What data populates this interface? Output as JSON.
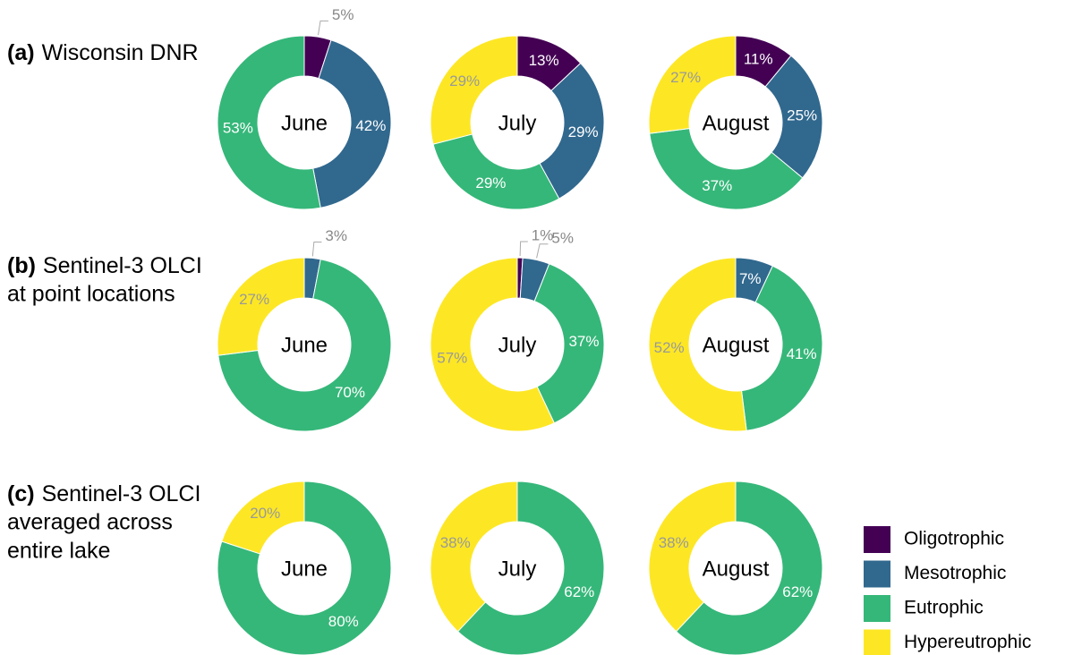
{
  "rows": [
    {
      "tag": "(a)",
      "lines": [
        "Wisconsin DNR"
      ]
    },
    {
      "tag": "(b)",
      "lines": [
        "Sentinel-3 OLCI",
        "at point locations"
      ]
    },
    {
      "tag": "(c)",
      "lines": [
        "Sentinel-3 OLCI",
        "averaged across",
        "entire lake"
      ]
    }
  ],
  "legend": {
    "labels": [
      "Oligotrophic",
      "Mesotrophic",
      "Eutrophic",
      "Hypereutrophic"
    ],
    "colors": [
      "#440154",
      "#31688e",
      "#35b779",
      "#fde725"
    ]
  },
  "chart_data": [
    {
      "type": "pie",
      "donut": true,
      "title": "June",
      "categories": [
        "Oligotrophic",
        "Mesotrophic",
        "Eutrophic"
      ],
      "values": [
        5,
        42,
        53
      ],
      "value_labels": [
        "5%",
        "42%",
        "53%"
      ],
      "colors": [
        "#440154",
        "#31688e",
        "#35b779"
      ]
    },
    {
      "type": "pie",
      "donut": true,
      "title": "July",
      "categories": [
        "Oligotrophic",
        "Mesotrophic",
        "Eutrophic",
        "Hypereutrophic"
      ],
      "values": [
        13,
        29,
        29,
        29
      ],
      "value_labels": [
        "13%",
        "29%",
        "29%",
        "29%"
      ],
      "colors": [
        "#440154",
        "#31688e",
        "#35b779",
        "#fde725"
      ]
    },
    {
      "type": "pie",
      "donut": true,
      "title": "August",
      "categories": [
        "Oligotrophic",
        "Mesotrophic",
        "Eutrophic",
        "Hypereutrophic"
      ],
      "values": [
        11,
        25,
        37,
        27
      ],
      "value_labels": [
        "11%",
        "25%",
        "37%",
        "27%"
      ],
      "colors": [
        "#440154",
        "#31688e",
        "#35b779",
        "#fde725"
      ]
    },
    {
      "type": "pie",
      "donut": true,
      "title": "June",
      "categories": [
        "Mesotrophic",
        "Eutrophic",
        "Hypereutrophic"
      ],
      "values": [
        3,
        70,
        27
      ],
      "value_labels": [
        "3%",
        "70%",
        "27%"
      ],
      "colors": [
        "#31688e",
        "#35b779",
        "#fde725"
      ]
    },
    {
      "type": "pie",
      "donut": true,
      "title": "July",
      "categories": [
        "Oligotrophic",
        "Mesotrophic",
        "Eutrophic",
        "Hypereutrophic"
      ],
      "values": [
        1,
        5,
        37,
        57
      ],
      "value_labels": [
        "1%",
        "5%",
        "37%",
        "57%"
      ],
      "colors": [
        "#440154",
        "#31688e",
        "#35b779",
        "#fde725"
      ]
    },
    {
      "type": "pie",
      "donut": true,
      "title": "August",
      "categories": [
        "Mesotrophic",
        "Eutrophic",
        "Hypereutrophic"
      ],
      "values": [
        7,
        41,
        52
      ],
      "value_labels": [
        "7%",
        "41%",
        "52%"
      ],
      "colors": [
        "#31688e",
        "#35b779",
        "#fde725"
      ]
    },
    {
      "type": "pie",
      "donut": true,
      "title": "June",
      "categories": [
        "Eutrophic",
        "Hypereutrophic"
      ],
      "values": [
        80,
        20
      ],
      "value_labels": [
        "80%",
        "20%"
      ],
      "colors": [
        "#35b779",
        "#fde725"
      ]
    },
    {
      "type": "pie",
      "donut": true,
      "title": "July",
      "categories": [
        "Eutrophic",
        "Hypereutrophic"
      ],
      "values": [
        62,
        38
      ],
      "value_labels": [
        "62%",
        "38%"
      ],
      "colors": [
        "#35b779",
        "#fde725"
      ]
    },
    {
      "type": "pie",
      "donut": true,
      "title": "August",
      "categories": [
        "Eutrophic",
        "Hypereutrophic"
      ],
      "values": [
        62,
        38
      ],
      "value_labels": [
        "62%",
        "38%"
      ],
      "colors": [
        "#35b779",
        "#fde725"
      ]
    }
  ]
}
